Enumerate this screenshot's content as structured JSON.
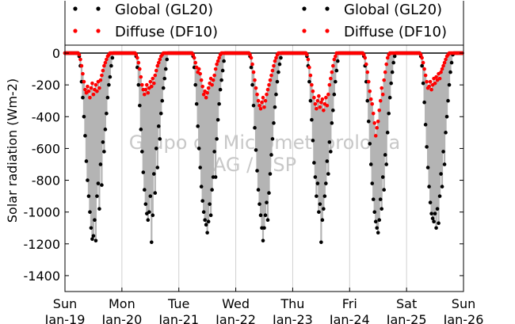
{
  "chart_data": {
    "type": "scatter",
    "ylabel": "Solar radiation (Wm-2)",
    "ylim": [
      -1500,
      50
    ],
    "yticks": [
      0,
      -200,
      -400,
      -600,
      -800,
      -1000,
      -1200,
      -1400
    ],
    "xlim": [
      "2014-01-19",
      "2014-01-26"
    ],
    "xticks": [
      {
        "day": "Sun",
        "date": "Jan-19"
      },
      {
        "day": "Mon",
        "date": "Jan-20"
      },
      {
        "day": "Tue",
        "date": "Jan-21"
      },
      {
        "day": "Wed",
        "date": "Jan-22"
      },
      {
        "day": "Thu",
        "date": "Jan-23"
      },
      {
        "day": "Fri",
        "date": "Jan-24"
      },
      {
        "day": "Sat",
        "date": "Jan-25"
      },
      {
        "day": "Sun",
        "date": "Jan-26"
      }
    ],
    "grid": "vertical",
    "legend_placement": "top",
    "legend_columns": [
      {
        "global": "Global (GL20)",
        "diffuse": "Diffuse (DF10)"
      },
      {
        "global": "Global (GL20)",
        "diffuse": "Diffuse (DF10)"
      }
    ],
    "watermark": [
      "Grupo de Micrometeorologia",
      "IAG / USP"
    ],
    "colors": {
      "global": "#000000",
      "diffuse": "#ff0000",
      "fill": "#b4b4b4",
      "grid": "#d0d0d0",
      "zero_line": "#000000"
    },
    "series": [
      {
        "name": "Global (GL20)",
        "color": "#000000",
        "days": [
          {
            "start": "2014-01-19",
            "values": [
              0,
              0,
              0,
              0,
              0,
              0,
              0,
              0,
              0,
              0,
              0,
              0,
              -20,
              -80,
              -180,
              -280,
              -400,
              -520,
              -680,
              -800,
              -900,
              -1000,
              -1100,
              -1170,
              -1150,
              -1050,
              -1180,
              -900,
              -820,
              -980,
              -700,
              -830,
              -560,
              -620,
              -480,
              -380,
              -280,
              -200,
              -150,
              -80,
              -30,
              0,
              0,
              0,
              0,
              0,
              0,
              0
            ]
          },
          {
            "start": "2014-01-20",
            "values": [
              0,
              0,
              0,
              0,
              0,
              0,
              0,
              0,
              0,
              0,
              0,
              0,
              -20,
              -90,
              -200,
              -330,
              -480,
              -620,
              -750,
              -860,
              -950,
              -1010,
              -1050,
              -1000,
              -900,
              -1190,
              -1020,
              -760,
              -880,
              -600,
              -720,
              -460,
              -540,
              -380,
              -300,
              -220,
              -160,
              -100,
              -40,
              0,
              0,
              0,
              0,
              0,
              0,
              0,
              0,
              0
            ]
          },
          {
            "start": "2014-01-21",
            "values": [
              0,
              0,
              0,
              0,
              0,
              0,
              0,
              0,
              0,
              0,
              0,
              0,
              -20,
              -90,
              -200,
              -320,
              -460,
              -600,
              -720,
              -840,
              -930,
              -1000,
              -1050,
              -1080,
              -1130,
              -1060,
              -950,
              -1020,
              -860,
              -780,
              -620,
              -780,
              -540,
              -420,
              -320,
              -230,
              -170,
              -110,
              -50,
              0,
              0,
              0,
              0,
              0,
              0,
              0,
              0,
              0
            ]
          },
          {
            "start": "2014-01-22",
            "values": [
              0,
              0,
              0,
              0,
              0,
              0,
              0,
              0,
              0,
              0,
              0,
              0,
              -20,
              -90,
              -200,
              -330,
              -470,
              -610,
              -740,
              -860,
              -950,
              -1020,
              -1100,
              -1180,
              -1100,
              -1020,
              -940,
              -1050,
              -880,
              -760,
              -640,
              -540,
              -440,
              -340,
              -260,
              -180,
              -120,
              -70,
              -30,
              0,
              0,
              0,
              0,
              0,
              0,
              0,
              0,
              0
            ]
          },
          {
            "start": "2014-01-23",
            "values": [
              0,
              0,
              0,
              0,
              0,
              0,
              0,
              0,
              0,
              0,
              0,
              0,
              -20,
              -80,
              -180,
              -300,
              -420,
              -550,
              -690,
              -780,
              -900,
              -820,
              -1000,
              -950,
              -1190,
              -1050,
              -980,
              -900,
              -820,
              -680,
              -760,
              -560,
              -620,
              -440,
              -360,
              -260,
              -180,
              -110,
              -50,
              0,
              0,
              0,
              0,
              0,
              0,
              0,
              0,
              0
            ]
          },
          {
            "start": "2014-01-24",
            "values": [
              0,
              0,
              0,
              0,
              0,
              0,
              0,
              0,
              0,
              0,
              0,
              0,
              -20,
              -80,
              -180,
              -300,
              -430,
              -570,
              -700,
              -820,
              -920,
              -1000,
              -1060,
              -1100,
              -1130,
              -1050,
              -920,
              -980,
              -780,
              -860,
              -640,
              -700,
              -500,
              -380,
              -280,
              -190,
              -120,
              -60,
              -20,
              0,
              0,
              0,
              0,
              0,
              0,
              0,
              0,
              0
            ]
          },
          {
            "start": "2014-01-25",
            "values": [
              0,
              0,
              0,
              0,
              0,
              0,
              0,
              0,
              0,
              0,
              0,
              0,
              -20,
              -80,
              -190,
              -310,
              -450,
              -590,
              -720,
              -840,
              -940,
              -1010,
              -1040,
              -1060,
              -1010,
              -1100,
              -980,
              -1070,
              -900,
              -760,
              -840,
              -620,
              -700,
              -500,
              -400,
              -300,
              -200,
              -120,
              -60,
              -10,
              0,
              0,
              0,
              0,
              0,
              0,
              0,
              0
            ]
          }
        ]
      },
      {
        "name": "Diffuse (DF10)",
        "color": "#ff0000",
        "days": [
          {
            "start": "2014-01-19",
            "values": [
              0,
              0,
              0,
              0,
              0,
              0,
              0,
              0,
              0,
              0,
              0,
              0,
              -10,
              -40,
              -80,
              -130,
              -180,
              -230,
              -250,
              -210,
              -240,
              -280,
              -220,
              -190,
              -260,
              -230,
              -200,
              -240,
              -180,
              -220,
              -170,
              -140,
              -110,
              -80,
              -60,
              -40,
              -20,
              -10,
              0,
              0,
              0,
              0,
              0,
              0,
              0,
              0,
              0,
              0
            ]
          },
          {
            "start": "2014-01-20",
            "values": [
              0,
              0,
              0,
              0,
              0,
              0,
              0,
              0,
              0,
              0,
              0,
              0,
              -10,
              -30,
              -60,
              -100,
              -150,
              -200,
              -230,
              -260,
              -230,
              -200,
              -250,
              -220,
              -180,
              -210,
              -160,
              -190,
              -140,
              -110,
              -80,
              -60,
              -40,
              -20,
              -10,
              0,
              0,
              0,
              0,
              0,
              0,
              0,
              0,
              0,
              0,
              0,
              0,
              0
            ]
          },
          {
            "start": "2014-01-21",
            "values": [
              0,
              0,
              0,
              0,
              0,
              0,
              0,
              0,
              0,
              0,
              0,
              0,
              -10,
              -30,
              -60,
              -90,
              -120,
              -100,
              -130,
              -170,
              -210,
              -260,
              -240,
              -280,
              -250,
              -220,
              -190,
              -160,
              -200,
              -170,
              -140,
              -100,
              -70,
              -50,
              -30,
              -10,
              0,
              0,
              0,
              0,
              0,
              0,
              0,
              0,
              0,
              0,
              0,
              0
            ]
          },
          {
            "start": "2014-01-22",
            "values": [
              0,
              0,
              0,
              0,
              0,
              0,
              0,
              0,
              0,
              0,
              0,
              0,
              -10,
              -30,
              -70,
              -120,
              -170,
              -220,
              -260,
              -300,
              -330,
              -350,
              -310,
              -280,
              -340,
              -300,
              -260,
              -230,
              -200,
              -170,
              -140,
              -110,
              -80,
              -50,
              -30,
              -10,
              0,
              0,
              0,
              0,
              0,
              0,
              0,
              0,
              0,
              0,
              0,
              0
            ]
          },
          {
            "start": "2014-01-23",
            "values": [
              0,
              0,
              0,
              0,
              0,
              0,
              0,
              0,
              0,
              0,
              0,
              0,
              -10,
              -40,
              -90,
              -140,
              -200,
              -240,
              -280,
              -320,
              -350,
              -300,
              -270,
              -340,
              -310,
              -290,
              -360,
              -320,
              -280,
              -330,
              -260,
              -200,
              -160,
              -120,
              -80,
              -40,
              -20,
              0,
              0,
              0,
              0,
              0,
              0,
              0,
              0,
              0,
              0,
              0
            ]
          },
          {
            "start": "2014-01-24",
            "values": [
              0,
              0,
              0,
              0,
              0,
              0,
              0,
              0,
              0,
              0,
              0,
              0,
              -10,
              -30,
              -70,
              -120,
              -180,
              -240,
              -290,
              -320,
              -380,
              -440,
              -520,
              -470,
              -430,
              -360,
              -300,
              -220,
              -260,
              -170,
              -120,
              -70,
              -30,
              -10,
              0,
              0,
              0,
              0,
              0,
              0,
              0,
              0,
              0,
              0,
              0,
              0,
              0,
              0
            ]
          },
          {
            "start": "2014-01-25",
            "values": [
              0,
              0,
              0,
              0,
              0,
              0,
              0,
              0,
              0,
              0,
              0,
              0,
              -10,
              -30,
              -60,
              -100,
              -140,
              -180,
              -220,
              -210,
              -180,
              -230,
              -200,
              -160,
              -190,
              -150,
              -170,
              -130,
              -160,
              -120,
              -100,
              -80,
              -60,
              -40,
              -20,
              -10,
              0,
              0,
              0,
              0,
              0,
              0,
              0,
              0,
              0,
              0,
              0,
              0
            ]
          }
        ]
      }
    ]
  }
}
